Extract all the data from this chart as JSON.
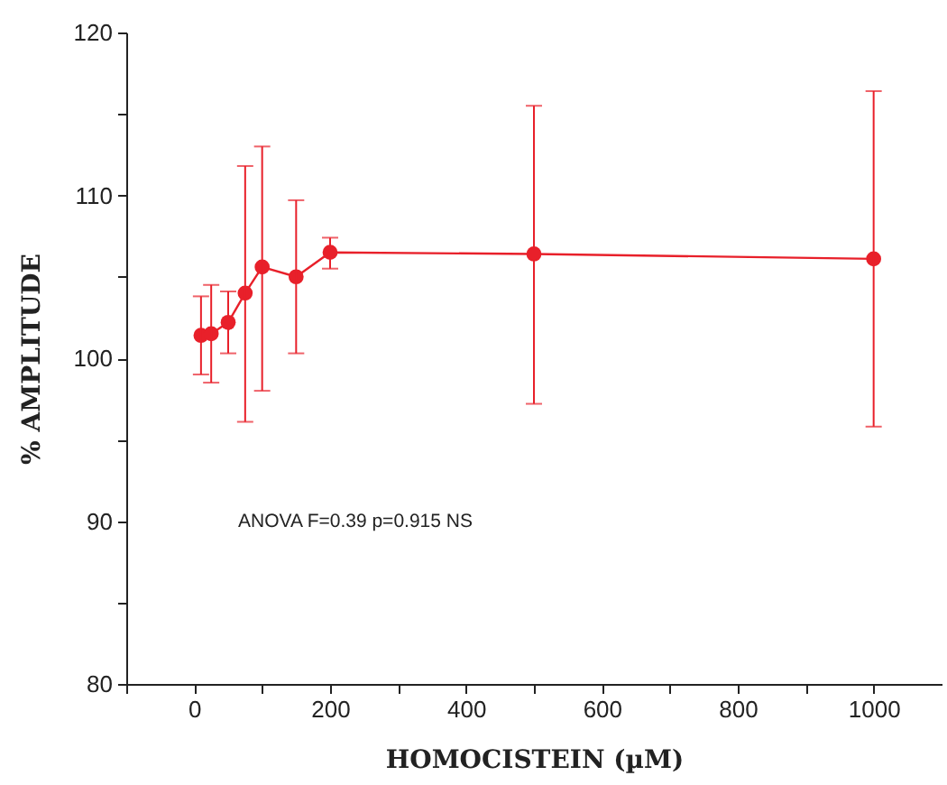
{
  "chart_data": {
    "type": "line",
    "xlabel": "HOMOCISTEIN (µM)",
    "ylabel": "% AMPLITUDE",
    "x": [
      10,
      25,
      50,
      75,
      100,
      150,
      200,
      500,
      1000
    ],
    "series": [
      {
        "color": "#e8202a",
        "values": [
          101.4,
          101.5,
          102.2,
          104.0,
          105.6,
          105.0,
          106.5,
          106.4,
          106.1
        ],
        "errors": [
          [
            99.0,
            103.8
          ],
          [
            98.5,
            104.5
          ],
          [
            100.3,
            104.1
          ],
          [
            96.1,
            111.8
          ],
          [
            98.0,
            113.0
          ],
          [
            100.3,
            109.7
          ],
          [
            105.5,
            107.4
          ],
          [
            97.2,
            115.5
          ],
          [
            95.8,
            116.4
          ]
        ]
      }
    ],
    "xlim": [
      -100,
      1100
    ],
    "xticks": [
      {
        "value": -100,
        "label": null
      },
      0,
      {
        "value": 100,
        "label": null
      },
      200,
      {
        "value": 300,
        "label": null
      },
      400,
      {
        "value": 500,
        "label": null
      },
      600,
      {
        "value": 700,
        "label": null
      },
      800,
      {
        "value": 900,
        "label": null
      },
      1000
    ],
    "ylim": [
      80,
      120
    ],
    "yticks": [
      80,
      {
        "value": 85,
        "label": null
      },
      90,
      {
        "value": 95,
        "label": null
      },
      100,
      {
        "value": 105,
        "label": null
      },
      110,
      {
        "value": 115,
        "label": null
      },
      120
    ],
    "marker": "circle",
    "grid": false,
    "annotations": [
      "ANOVA  F=0.39  p=0.915   NS"
    ]
  }
}
